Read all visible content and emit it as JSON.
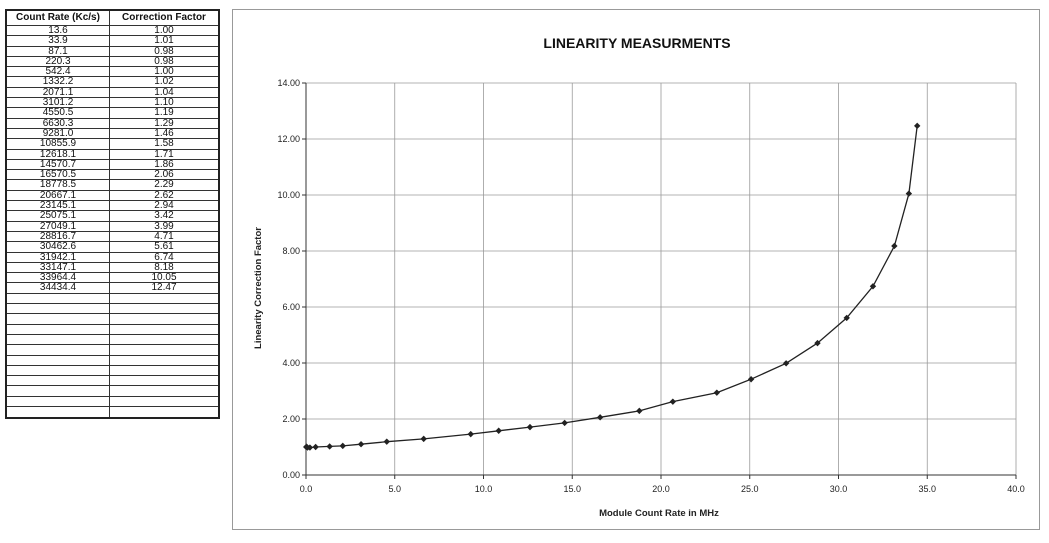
{
  "table": {
    "headers": [
      "Count Rate (Kc/s)",
      "Correction Factor"
    ],
    "rows": [
      [
        "13.6",
        "1.00"
      ],
      [
        "33.9",
        "1.01"
      ],
      [
        "87.1",
        "0.98"
      ],
      [
        "220.3",
        "0.98"
      ],
      [
        "542.4",
        "1.00"
      ],
      [
        "1332.2",
        "1.02"
      ],
      [
        "2071.1",
        "1.04"
      ],
      [
        "3101.2",
        "1.10"
      ],
      [
        "4550.5",
        "1.19"
      ],
      [
        "6630.3",
        "1.29"
      ],
      [
        "9281.0",
        "1.46"
      ],
      [
        "10855.9",
        "1.58"
      ],
      [
        "12618.1",
        "1.71"
      ],
      [
        "14570.7",
        "1.86"
      ],
      [
        "16570.5",
        "2.06"
      ],
      [
        "18778.5",
        "2.29"
      ],
      [
        "20667.1",
        "2.62"
      ],
      [
        "23145.1",
        "2.94"
      ],
      [
        "25075.1",
        "3.42"
      ],
      [
        "27049.1",
        "3.99"
      ],
      [
        "28816.7",
        "4.71"
      ],
      [
        "30462.6",
        "5.61"
      ],
      [
        "31942.1",
        "6.74"
      ],
      [
        "33147.1",
        "8.18"
      ],
      [
        "33964.4",
        "10.05"
      ],
      [
        "34434.4",
        "12.47"
      ],
      [
        "",
        ""
      ],
      [
        "",
        ""
      ],
      [
        "",
        ""
      ],
      [
        "",
        ""
      ],
      [
        "",
        ""
      ],
      [
        "",
        ""
      ],
      [
        "",
        ""
      ],
      [
        "",
        ""
      ],
      [
        "",
        ""
      ],
      [
        "",
        ""
      ],
      [
        "",
        ""
      ],
      [
        "",
        ""
      ]
    ]
  },
  "chart_data": {
    "type": "scatter",
    "title": "LINEARITY MEASURMENTS",
    "xlabel": "Module Count Rate in MHz",
    "ylabel": "Linearity Correction Factor",
    "xlim": [
      0,
      40
    ],
    "ylim": [
      0,
      14
    ],
    "xticks": [
      "0.0",
      "5.0",
      "10.0",
      "15.0",
      "20.0",
      "25.0",
      "30.0",
      "35.0",
      "40.0"
    ],
    "yticks": [
      "0.00",
      "2.00",
      "4.00",
      "6.00",
      "8.00",
      "10.00",
      "12.00",
      "14.00"
    ],
    "grid": true,
    "series": [
      {
        "x": [
          0.0136,
          0.0339,
          0.0871,
          0.2203,
          0.5424,
          1.3322,
          2.0711,
          3.1012,
          4.5505,
          6.6303,
          9.281,
          10.8559,
          12.6181,
          14.5707,
          16.5705,
          18.7785,
          20.6671,
          23.1451,
          25.0751,
          27.0491,
          28.8167,
          30.4626,
          31.9421,
          33.1471,
          33.9644,
          34.4344
        ],
        "y": [
          1.0,
          1.01,
          0.98,
          0.98,
          1.0,
          1.02,
          1.04,
          1.1,
          1.19,
          1.29,
          1.46,
          1.58,
          1.71,
          1.86,
          2.06,
          2.29,
          2.62,
          2.94,
          3.42,
          3.99,
          4.71,
          5.61,
          6.74,
          8.18,
          10.05,
          12.47
        ]
      }
    ],
    "colors": {
      "marker": "#222222",
      "line": "#222222",
      "grid": "#9a9a9a"
    }
  }
}
